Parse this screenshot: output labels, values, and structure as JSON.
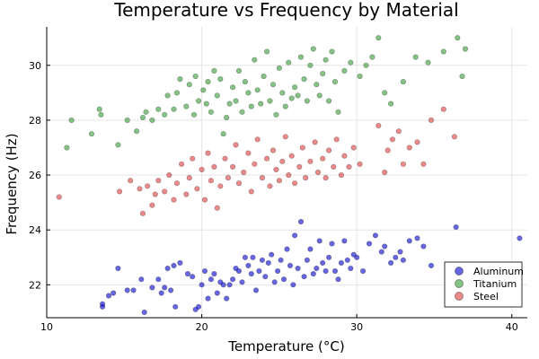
{
  "chart_data": {
    "type": "scatter",
    "title": "Temperature vs Frequency by Material",
    "xlabel": "Temperature (°C)",
    "ylabel": "Frequency (Hz)",
    "xlim": [
      10,
      41
    ],
    "ylim": [
      20.8,
      31.4
    ],
    "xticks": [
      10,
      20,
      30,
      40
    ],
    "yticks": [
      22,
      24,
      26,
      28,
      30
    ],
    "grid": true,
    "legend_position": "bottom-right",
    "series": [
      {
        "name": "Aluminum",
        "color": "#0000cc",
        "points": [
          [
            13.6,
            21.2
          ],
          [
            13.6,
            21.3
          ],
          [
            14.0,
            21.6
          ],
          [
            14.3,
            21.7
          ],
          [
            14.6,
            22.6
          ],
          [
            15.2,
            21.8
          ],
          [
            15.6,
            21.8
          ],
          [
            16.1,
            22.2
          ],
          [
            16.3,
            21.0
          ],
          [
            16.8,
            21.9
          ],
          [
            17.2,
            22.2
          ],
          [
            17.4,
            21.7
          ],
          [
            17.6,
            21.9
          ],
          [
            17.8,
            22.6
          ],
          [
            18.0,
            21.8
          ],
          [
            18.2,
            22.7
          ],
          [
            18.3,
            21.2
          ],
          [
            18.6,
            22.8
          ],
          [
            19.1,
            22.4
          ],
          [
            19.4,
            22.3
          ],
          [
            19.6,
            21.1
          ],
          [
            19.8,
            21.2
          ],
          [
            20.0,
            22.0
          ],
          [
            20.2,
            22.5
          ],
          [
            20.4,
            21.5
          ],
          [
            20.6,
            22.2
          ],
          [
            20.8,
            22.4
          ],
          [
            21.0,
            21.7
          ],
          [
            21.2,
            22.1
          ],
          [
            21.4,
            22.0
          ],
          [
            21.6,
            21.5
          ],
          [
            21.8,
            22.0
          ],
          [
            22.0,
            22.2
          ],
          [
            22.2,
            22.6
          ],
          [
            22.4,
            22.5
          ],
          [
            22.6,
            22.1
          ],
          [
            22.8,
            23.0
          ],
          [
            23.0,
            22.7
          ],
          [
            23.2,
            22.4
          ],
          [
            23.3,
            23.0
          ],
          [
            23.5,
            21.8
          ],
          [
            23.7,
            22.5
          ],
          [
            23.9,
            22.9
          ],
          [
            24.1,
            22.3
          ],
          [
            24.3,
            22.8
          ],
          [
            24.5,
            23.1
          ],
          [
            24.7,
            22.1
          ],
          [
            24.9,
            22.5
          ],
          [
            25.1,
            22.9
          ],
          [
            25.3,
            22.2
          ],
          [
            25.5,
            23.3
          ],
          [
            25.7,
            22.7
          ],
          [
            25.9,
            22.0
          ],
          [
            26.0,
            23.8
          ],
          [
            26.2,
            22.6
          ],
          [
            26.4,
            24.3
          ],
          [
            26.6,
            22.3
          ],
          [
            26.8,
            22.9
          ],
          [
            27.0,
            23.3
          ],
          [
            27.2,
            22.4
          ],
          [
            27.4,
            22.6
          ],
          [
            27.6,
            23.6
          ],
          [
            27.8,
            22.8
          ],
          [
            28.0,
            22.5
          ],
          [
            28.2,
            23.0
          ],
          [
            28.4,
            23.5
          ],
          [
            28.6,
            22.5
          ],
          [
            28.8,
            22.2
          ],
          [
            29.0,
            22.8
          ],
          [
            29.2,
            23.6
          ],
          [
            29.4,
            22.9
          ],
          [
            29.6,
            22.6
          ],
          [
            29.8,
            23.1
          ],
          [
            30.0,
            23.0
          ],
          [
            30.4,
            22.5
          ],
          [
            30.8,
            23.5
          ],
          [
            31.2,
            23.8
          ],
          [
            31.6,
            23.2
          ],
          [
            31.8,
            23.4
          ],
          [
            32.2,
            22.8
          ],
          [
            32.5,
            23.0
          ],
          [
            32.8,
            23.2
          ],
          [
            33.0,
            22.9
          ],
          [
            33.4,
            23.6
          ],
          [
            33.9,
            23.7
          ],
          [
            34.3,
            23.4
          ],
          [
            34.8,
            22.7
          ],
          [
            36.4,
            24.1
          ],
          [
            40.5,
            23.7
          ]
        ]
      },
      {
        "name": "Titanium",
        "color": "#339933",
        "points": [
          [
            11.3,
            27.0
          ],
          [
            11.6,
            28.0
          ],
          [
            12.9,
            27.5
          ],
          [
            13.4,
            28.4
          ],
          [
            13.5,
            28.2
          ],
          [
            14.6,
            27.1
          ],
          [
            15.2,
            28.0
          ],
          [
            15.8,
            27.6
          ],
          [
            16.2,
            28.1
          ],
          [
            16.4,
            28.3
          ],
          [
            16.8,
            28.0
          ],
          [
            17.2,
            28.4
          ],
          [
            17.6,
            28.2
          ],
          [
            17.8,
            28.9
          ],
          [
            18.2,
            28.4
          ],
          [
            18.4,
            29.0
          ],
          [
            18.6,
            29.5
          ],
          [
            19.0,
            28.5
          ],
          [
            19.2,
            29.3
          ],
          [
            19.5,
            28.2
          ],
          [
            19.6,
            29.6
          ],
          [
            19.8,
            28.7
          ],
          [
            20.1,
            29.1
          ],
          [
            20.3,
            28.6
          ],
          [
            20.4,
            29.4
          ],
          [
            20.6,
            28.3
          ],
          [
            20.8,
            29.8
          ],
          [
            21.0,
            28.9
          ],
          [
            21.2,
            29.5
          ],
          [
            21.4,
            27.5
          ],
          [
            21.6,
            28.1
          ],
          [
            21.8,
            28.6
          ],
          [
            22.0,
            29.2
          ],
          [
            22.2,
            28.7
          ],
          [
            22.4,
            29.8
          ],
          [
            22.6,
            28.3
          ],
          [
            22.8,
            29.4
          ],
          [
            23.0,
            29.0
          ],
          [
            23.2,
            28.5
          ],
          [
            23.4,
            30.2
          ],
          [
            23.6,
            29.1
          ],
          [
            23.8,
            28.6
          ],
          [
            24.0,
            29.6
          ],
          [
            24.2,
            30.5
          ],
          [
            24.4,
            28.7
          ],
          [
            24.6,
            29.3
          ],
          [
            24.8,
            28.2
          ],
          [
            25.0,
            29.9
          ],
          [
            25.2,
            29.0
          ],
          [
            25.4,
            28.5
          ],
          [
            25.6,
            30.1
          ],
          [
            25.8,
            28.8
          ],
          [
            26.0,
            29.2
          ],
          [
            26.2,
            28.9
          ],
          [
            26.4,
            30.3
          ],
          [
            26.6,
            29.5
          ],
          [
            26.8,
            28.7
          ],
          [
            27.0,
            30.0
          ],
          [
            27.2,
            30.6
          ],
          [
            27.4,
            29.3
          ],
          [
            27.6,
            28.9
          ],
          [
            27.8,
            29.7
          ],
          [
            28.0,
            30.2
          ],
          [
            28.2,
            28.7
          ],
          [
            28.4,
            30.5
          ],
          [
            28.6,
            29.4
          ],
          [
            28.8,
            28.3
          ],
          [
            29.2,
            29.8
          ],
          [
            29.6,
            30.1
          ],
          [
            30.2,
            29.6
          ],
          [
            30.6,
            30.0
          ],
          [
            31.0,
            30.3
          ],
          [
            31.4,
            31.0
          ],
          [
            31.8,
            29.0
          ],
          [
            32.2,
            28.6
          ],
          [
            33.0,
            29.4
          ],
          [
            33.8,
            30.3
          ],
          [
            34.6,
            30.1
          ],
          [
            35.6,
            30.5
          ],
          [
            36.5,
            31.0
          ],
          [
            36.8,
            29.6
          ],
          [
            37.0,
            30.6
          ]
        ]
      },
      {
        "name": "Steel",
        "color": "#e03c3c",
        "points": [
          [
            10.8,
            25.2
          ],
          [
            14.7,
            25.4
          ],
          [
            15.4,
            25.8
          ],
          [
            16.0,
            25.5
          ],
          [
            16.2,
            24.6
          ],
          [
            16.5,
            25.6
          ],
          [
            16.8,
            24.9
          ],
          [
            17.0,
            25.3
          ],
          [
            17.2,
            25.8
          ],
          [
            17.6,
            25.4
          ],
          [
            17.9,
            26.0
          ],
          [
            18.2,
            25.1
          ],
          [
            18.4,
            25.7
          ],
          [
            18.7,
            26.4
          ],
          [
            19.0,
            25.3
          ],
          [
            19.2,
            25.9
          ],
          [
            19.4,
            26.6
          ],
          [
            19.7,
            25.5
          ],
          [
            20.0,
            26.2
          ],
          [
            20.2,
            25.1
          ],
          [
            20.4,
            26.8
          ],
          [
            20.6,
            25.8
          ],
          [
            20.8,
            26.3
          ],
          [
            21.0,
            24.8
          ],
          [
            21.2,
            25.6
          ],
          [
            21.5,
            26.6
          ],
          [
            21.7,
            25.9
          ],
          [
            22.0,
            26.3
          ],
          [
            22.2,
            27.1
          ],
          [
            22.4,
            25.7
          ],
          [
            22.7,
            26.1
          ],
          [
            23.0,
            26.8
          ],
          [
            23.2,
            25.4
          ],
          [
            23.4,
            26.4
          ],
          [
            23.6,
            27.3
          ],
          [
            23.9,
            25.9
          ],
          [
            24.2,
            26.6
          ],
          [
            24.4,
            25.6
          ],
          [
            24.6,
            26.9
          ],
          [
            24.8,
            26.2
          ],
          [
            25.0,
            25.8
          ],
          [
            25.2,
            26.5
          ],
          [
            25.4,
            27.4
          ],
          [
            25.6,
            26.0
          ],
          [
            25.8,
            26.7
          ],
          [
            26.0,
            25.7
          ],
          [
            26.3,
            26.3
          ],
          [
            26.5,
            27.0
          ],
          [
            26.7,
            25.9
          ],
          [
            27.0,
            26.5
          ],
          [
            27.3,
            27.2
          ],
          [
            27.5,
            26.1
          ],
          [
            27.8,
            26.6
          ],
          [
            28.0,
            25.9
          ],
          [
            28.2,
            26.9
          ],
          [
            28.5,
            26.3
          ],
          [
            28.7,
            27.3
          ],
          [
            29.0,
            26.0
          ],
          [
            29.2,
            26.7
          ],
          [
            29.5,
            26.3
          ],
          [
            29.8,
            27.0
          ],
          [
            30.2,
            26.4
          ],
          [
            31.4,
            27.8
          ],
          [
            31.8,
            26.1
          ],
          [
            32.0,
            26.9
          ],
          [
            32.3,
            27.3
          ],
          [
            32.7,
            27.6
          ],
          [
            33.0,
            26.4
          ],
          [
            33.4,
            27.0
          ],
          [
            33.9,
            27.2
          ],
          [
            34.3,
            26.4
          ],
          [
            34.8,
            28.0
          ],
          [
            35.6,
            28.4
          ],
          [
            36.3,
            27.4
          ]
        ]
      }
    ]
  }
}
